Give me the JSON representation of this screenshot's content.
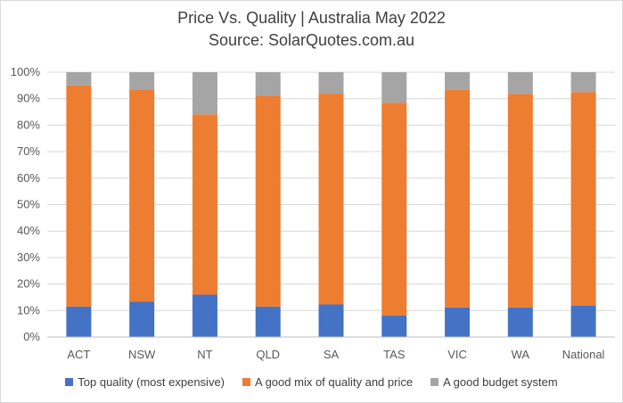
{
  "chart_data": {
    "type": "bar",
    "stacked": true,
    "title": "Price Vs. Quality | Australia May 2022",
    "subtitle": "Source: SolarQuotes.com.au",
    "categories": [
      "ACT",
      "NSW",
      "NT",
      "QLD",
      "SA",
      "TAS",
      "VIC",
      "WA",
      "National"
    ],
    "series": [
      {
        "name": "Top quality (most expensive)",
        "color": "#4472C4",
        "values": [
          11.5,
          13.3,
          16.0,
          11.5,
          12.3,
          8.1,
          11.2,
          11.2,
          11.9
        ]
      },
      {
        "name": "A good mix of quality and price",
        "color": "#ED7D31",
        "values": [
          83.5,
          80.2,
          68.1,
          79.6,
          79.6,
          80.4,
          82.1,
          80.6,
          80.6
        ]
      },
      {
        "name": "A good budget system",
        "color": "#A5A5A5",
        "values": [
          5.0,
          6.5,
          15.9,
          8.9,
          8.1,
          11.5,
          6.7,
          8.2,
          7.5
        ]
      }
    ],
    "yticks": [
      "0%",
      "10%",
      "20%",
      "30%",
      "40%",
      "50%",
      "60%",
      "70%",
      "80%",
      "90%",
      "100%"
    ],
    "ylim": [
      0,
      100
    ],
    "grid": true,
    "legend": "bottom"
  }
}
